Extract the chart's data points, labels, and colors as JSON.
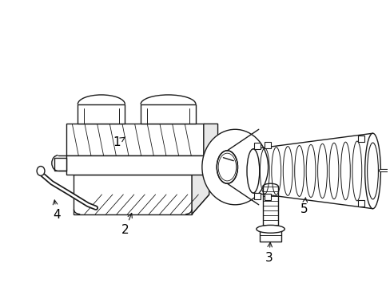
{
  "background_color": "#ffffff",
  "line_color": "#1a1a1a",
  "line_width": 1.0,
  "figsize": [
    4.89,
    3.6
  ],
  "dpi": 100,
  "font_size": 11
}
